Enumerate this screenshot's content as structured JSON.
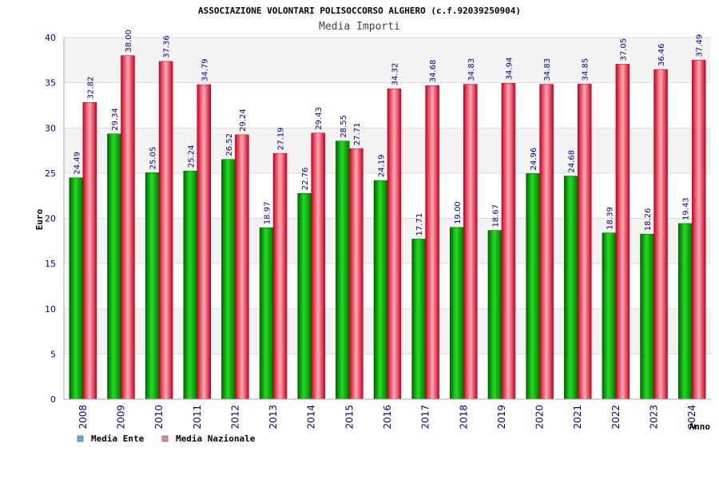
{
  "chart_data": {
    "type": "bar",
    "title": "ASSOCIAZIONE VOLONTARI POLISOCCORSO ALGHERO (c.f.92039250904)",
    "subtitle": "Media Importi",
    "xlabel": "Anno",
    "ylabel": "Euro",
    "ylim": [
      0,
      40
    ],
    "yticks": [
      0,
      5,
      10,
      15,
      20,
      25,
      30,
      35,
      40
    ],
    "grid": true,
    "legend_position": "bottom-left",
    "categories": [
      "2008",
      "2009",
      "2010",
      "2011",
      "2012",
      "2013",
      "2014",
      "2015",
      "2016",
      "2017",
      "2018",
      "2019",
      "2020",
      "2021",
      "2022",
      "2023",
      "2024"
    ],
    "series": [
      {
        "name": "Media Ente",
        "legend_color": "#66aaee",
        "bar_color": "#00aa00",
        "values": [
          24.49,
          29.34,
          25.05,
          25.24,
          26.52,
          18.97,
          22.76,
          28.55,
          24.19,
          17.71,
          19.0,
          18.67,
          24.96,
          24.68,
          18.39,
          18.26,
          19.43
        ],
        "labels": [
          "24.49",
          "29.34",
          "25.05",
          "25.24",
          "26.52",
          "18.97",
          "22.76",
          "28.55",
          "24.19",
          "17.71",
          "19.00",
          "18.67",
          "24.96",
          "24.68",
          "18.39",
          "18.26",
          "19.43"
        ]
      },
      {
        "name": "Media Nazionale",
        "legend_color": "#dd88bb",
        "bar_color": "#ee1133",
        "values": [
          32.82,
          38.0,
          37.36,
          34.79,
          29.24,
          27.19,
          29.43,
          27.71,
          34.32,
          34.68,
          34.83,
          34.94,
          34.83,
          34.85,
          37.05,
          36.46,
          37.49
        ],
        "labels": [
          "32.82",
          "38.00",
          "37.36",
          "34.79",
          "29.24",
          "27.19",
          "29.43",
          "27.71",
          "34.32",
          "34.68",
          "34.83",
          "34.94",
          "34.83",
          "34.85",
          "37.05",
          "36.46",
          "37.49"
        ]
      }
    ]
  }
}
